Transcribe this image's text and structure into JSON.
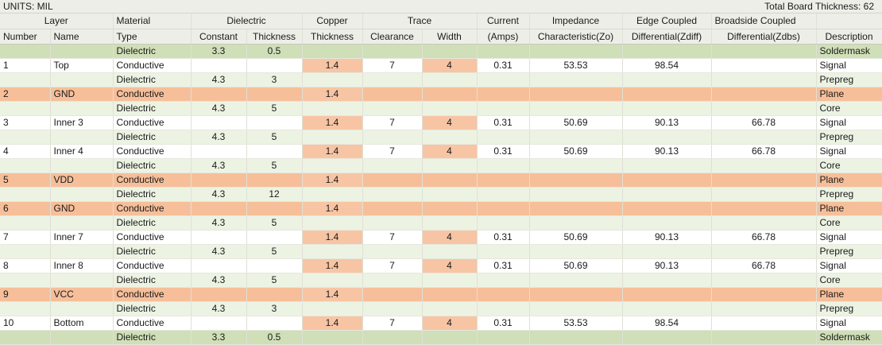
{
  "header": {
    "units_label": "UNITS: MIL",
    "total_label": "Total Board Thickness: 62"
  },
  "columns": {
    "groups": [
      "Layer",
      "Material",
      "Dielectric",
      "Copper",
      "Trace",
      "Current",
      "Impedance",
      "Edge Coupled",
      "Broadside Coupled",
      ""
    ],
    "subs": [
      "Number",
      "Name",
      "Type",
      "Constant",
      "Thickness",
      "Thickness",
      "Clearance",
      "Width",
      "(Amps)",
      "Characteristic(Zo)",
      "Differential(Zdiff)",
      "Differential(Zdbs)",
      "Description"
    ]
  },
  "rows": [
    {
      "kind": "green",
      "num": "",
      "name": "",
      "type": "Dielectric",
      "constant": "3.3",
      "diel_thick": "0.5",
      "copper": "",
      "clearance": "",
      "width": "",
      "current": "",
      "zo": "",
      "zdiff": "",
      "zdbs": "",
      "desc": "Soldermask"
    },
    {
      "kind": "white",
      "num": "1",
      "name": "Top",
      "type": "Conductive",
      "constant": "",
      "diel_thick": "",
      "copper": "1.4",
      "clearance": "7",
      "width": "4",
      "current": "0.31",
      "zo": "53.53",
      "zdiff": "98.54",
      "zdbs": "",
      "desc": "Signal"
    },
    {
      "kind": "pale",
      "num": "",
      "name": "",
      "type": "Dielectric",
      "constant": "4.3",
      "diel_thick": "3",
      "copper": "",
      "clearance": "",
      "width": "",
      "current": "",
      "zo": "",
      "zdiff": "",
      "zdbs": "",
      "desc": "Prepreg"
    },
    {
      "kind": "plane",
      "num": "2",
      "name": "GND",
      "type": "Conductive",
      "constant": "",
      "diel_thick": "",
      "copper": "1.4",
      "clearance": "",
      "width": "",
      "current": "",
      "zo": "",
      "zdiff": "",
      "zdbs": "",
      "desc": "Plane"
    },
    {
      "kind": "pale",
      "num": "",
      "name": "",
      "type": "Dielectric",
      "constant": "4.3",
      "diel_thick": "5",
      "copper": "",
      "clearance": "",
      "width": "",
      "current": "",
      "zo": "",
      "zdiff": "",
      "zdbs": "",
      "desc": "Core"
    },
    {
      "kind": "white",
      "num": "3",
      "name": "Inner 3",
      "type": "Conductive",
      "constant": "",
      "diel_thick": "",
      "copper": "1.4",
      "clearance": "7",
      "width": "4",
      "current": "0.31",
      "zo": "50.69",
      "zdiff": "90.13",
      "zdbs": "66.78",
      "desc": "Signal"
    },
    {
      "kind": "pale",
      "num": "",
      "name": "",
      "type": "Dielectric",
      "constant": "4.3",
      "diel_thick": "5",
      "copper": "",
      "clearance": "",
      "width": "",
      "current": "",
      "zo": "",
      "zdiff": "",
      "zdbs": "",
      "desc": "Prepreg"
    },
    {
      "kind": "white",
      "num": "4",
      "name": "Inner 4",
      "type": "Conductive",
      "constant": "",
      "diel_thick": "",
      "copper": "1.4",
      "clearance": "7",
      "width": "4",
      "current": "0.31",
      "zo": "50.69",
      "zdiff": "90.13",
      "zdbs": "66.78",
      "desc": "Signal"
    },
    {
      "kind": "pale",
      "num": "",
      "name": "",
      "type": "Dielectric",
      "constant": "4.3",
      "diel_thick": "5",
      "copper": "",
      "clearance": "",
      "width": "",
      "current": "",
      "zo": "",
      "zdiff": "",
      "zdbs": "",
      "desc": "Core"
    },
    {
      "kind": "plane",
      "num": "5",
      "name": "VDD",
      "type": "Conductive",
      "constant": "",
      "diel_thick": "",
      "copper": "1.4",
      "clearance": "",
      "width": "",
      "current": "",
      "zo": "",
      "zdiff": "",
      "zdbs": "",
      "desc": "Plane"
    },
    {
      "kind": "pale",
      "num": "",
      "name": "",
      "type": "Dielectric",
      "constant": "4.3",
      "diel_thick": "12",
      "copper": "",
      "clearance": "",
      "width": "",
      "current": "",
      "zo": "",
      "zdiff": "",
      "zdbs": "",
      "desc": "Prepreg"
    },
    {
      "kind": "plane",
      "num": "6",
      "name": "GND",
      "type": "Conductive",
      "constant": "",
      "diel_thick": "",
      "copper": "1.4",
      "clearance": "",
      "width": "",
      "current": "",
      "zo": "",
      "zdiff": "",
      "zdbs": "",
      "desc": "Plane"
    },
    {
      "kind": "pale",
      "num": "",
      "name": "",
      "type": "Dielectric",
      "constant": "4.3",
      "diel_thick": "5",
      "copper": "",
      "clearance": "",
      "width": "",
      "current": "",
      "zo": "",
      "zdiff": "",
      "zdbs": "",
      "desc": "Core"
    },
    {
      "kind": "white",
      "num": "7",
      "name": "Inner 7",
      "type": "Conductive",
      "constant": "",
      "diel_thick": "",
      "copper": "1.4",
      "clearance": "7",
      "width": "4",
      "current": "0.31",
      "zo": "50.69",
      "zdiff": "90.13",
      "zdbs": "66.78",
      "desc": "Signal"
    },
    {
      "kind": "pale",
      "num": "",
      "name": "",
      "type": "Dielectric",
      "constant": "4.3",
      "diel_thick": "5",
      "copper": "",
      "clearance": "",
      "width": "",
      "current": "",
      "zo": "",
      "zdiff": "",
      "zdbs": "",
      "desc": "Prepreg"
    },
    {
      "kind": "white",
      "num": "8",
      "name": "Inner 8",
      "type": "Conductive",
      "constant": "",
      "diel_thick": "",
      "copper": "1.4",
      "clearance": "7",
      "width": "4",
      "current": "0.31",
      "zo": "50.69",
      "zdiff": "90.13",
      "zdbs": "66.78",
      "desc": "Signal"
    },
    {
      "kind": "pale",
      "num": "",
      "name": "",
      "type": "Dielectric",
      "constant": "4.3",
      "diel_thick": "5",
      "copper": "",
      "clearance": "",
      "width": "",
      "current": "",
      "zo": "",
      "zdiff": "",
      "zdbs": "",
      "desc": "Core"
    },
    {
      "kind": "plane",
      "num": "9",
      "name": "VCC",
      "type": "Conductive",
      "constant": "",
      "diel_thick": "",
      "copper": "1.4",
      "clearance": "",
      "width": "",
      "current": "",
      "zo": "",
      "zdiff": "",
      "zdbs": "",
      "desc": "Plane"
    },
    {
      "kind": "pale",
      "num": "",
      "name": "",
      "type": "Dielectric",
      "constant": "4.3",
      "diel_thick": "3",
      "copper": "",
      "clearance": "",
      "width": "",
      "current": "",
      "zo": "",
      "zdiff": "",
      "zdbs": "",
      "desc": "Prepreg"
    },
    {
      "kind": "white",
      "num": "10",
      "name": "Bottom",
      "type": "Conductive",
      "constant": "",
      "diel_thick": "",
      "copper": "1.4",
      "clearance": "7",
      "width": "4",
      "current": "0.31",
      "zo": "53.53",
      "zdiff": "98.54",
      "zdbs": "",
      "desc": "Signal"
    },
    {
      "kind": "green",
      "num": "",
      "name": "",
      "type": "Dielectric",
      "constant": "3.3",
      "diel_thick": "0.5",
      "copper": "",
      "clearance": "",
      "width": "",
      "current": "",
      "zo": "",
      "zdiff": "",
      "zdbs": "",
      "desc": "Soldermask"
    }
  ]
}
